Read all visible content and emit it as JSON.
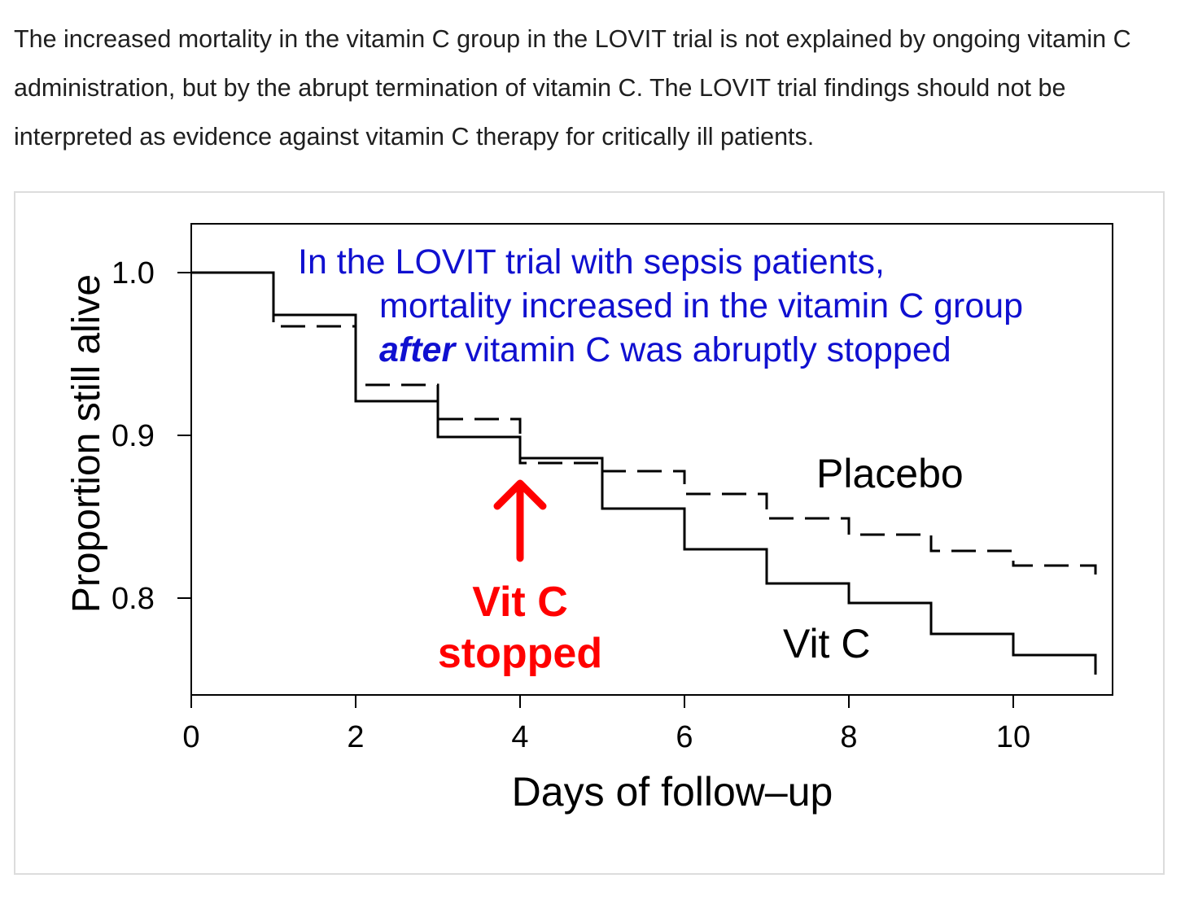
{
  "article": {
    "paragraph": "The increased mortality in the vitamin C group in the LOVIT trial is not explained by ongoing vitamin C administration, but by the abrupt termination of vitamin C. The LOVIT trial findings should not be interpreted as evidence against vitamin C therapy for critically ill patients."
  },
  "chart_data": {
    "type": "line",
    "subtype": "kaplan-meier step",
    "xlabel": "Days of follow–up",
    "ylabel": "Proportion still alive",
    "xlim": [
      0,
      11
    ],
    "ylim": [
      0.75,
      1.03
    ],
    "x_ticks": [
      "0",
      "2",
      "4",
      "6",
      "8",
      "10"
    ],
    "x_tick_values": [
      0,
      2,
      4,
      6,
      8,
      10
    ],
    "y_ticks": [
      "0.8",
      "0.9",
      "1.0"
    ],
    "y_tick_values": [
      0.8,
      0.9,
      1.0
    ],
    "grid": false,
    "series": [
      {
        "name": "Vit C",
        "style": "solid",
        "color": "#000000",
        "x": [
          0,
          1,
          2,
          3,
          4,
          5,
          6,
          7,
          8,
          9,
          10,
          11
        ],
        "values": [
          1.0,
          0.974,
          0.921,
          0.899,
          0.886,
          0.855,
          0.83,
          0.809,
          0.797,
          0.778,
          0.765,
          0.753
        ]
      },
      {
        "name": "Placebo",
        "style": "dashed",
        "color": "#000000",
        "x": [
          0,
          1,
          2,
          3,
          4,
          5,
          6,
          7,
          8,
          9,
          10,
          11
        ],
        "values": [
          1.0,
          0.967,
          0.931,
          0.91,
          0.883,
          0.878,
          0.864,
          0.849,
          0.839,
          0.829,
          0.82,
          0.808
        ]
      }
    ],
    "annotations": {
      "title_lines": [
        "In the LOVIT trial with sepsis patients,",
        "mortality increased in the vitamin C group"
      ],
      "title_line3_emph": "after",
      "title_line3_rest": " vitamin C was abruptly stopped",
      "title_color": "#1010d0",
      "placebo_label": "Placebo",
      "vitc_label": "Vit C",
      "stopped_line1": "Vit C",
      "stopped_line2": "stopped",
      "stopped_color": "#ff0000",
      "stopped_day": 4
    }
  }
}
